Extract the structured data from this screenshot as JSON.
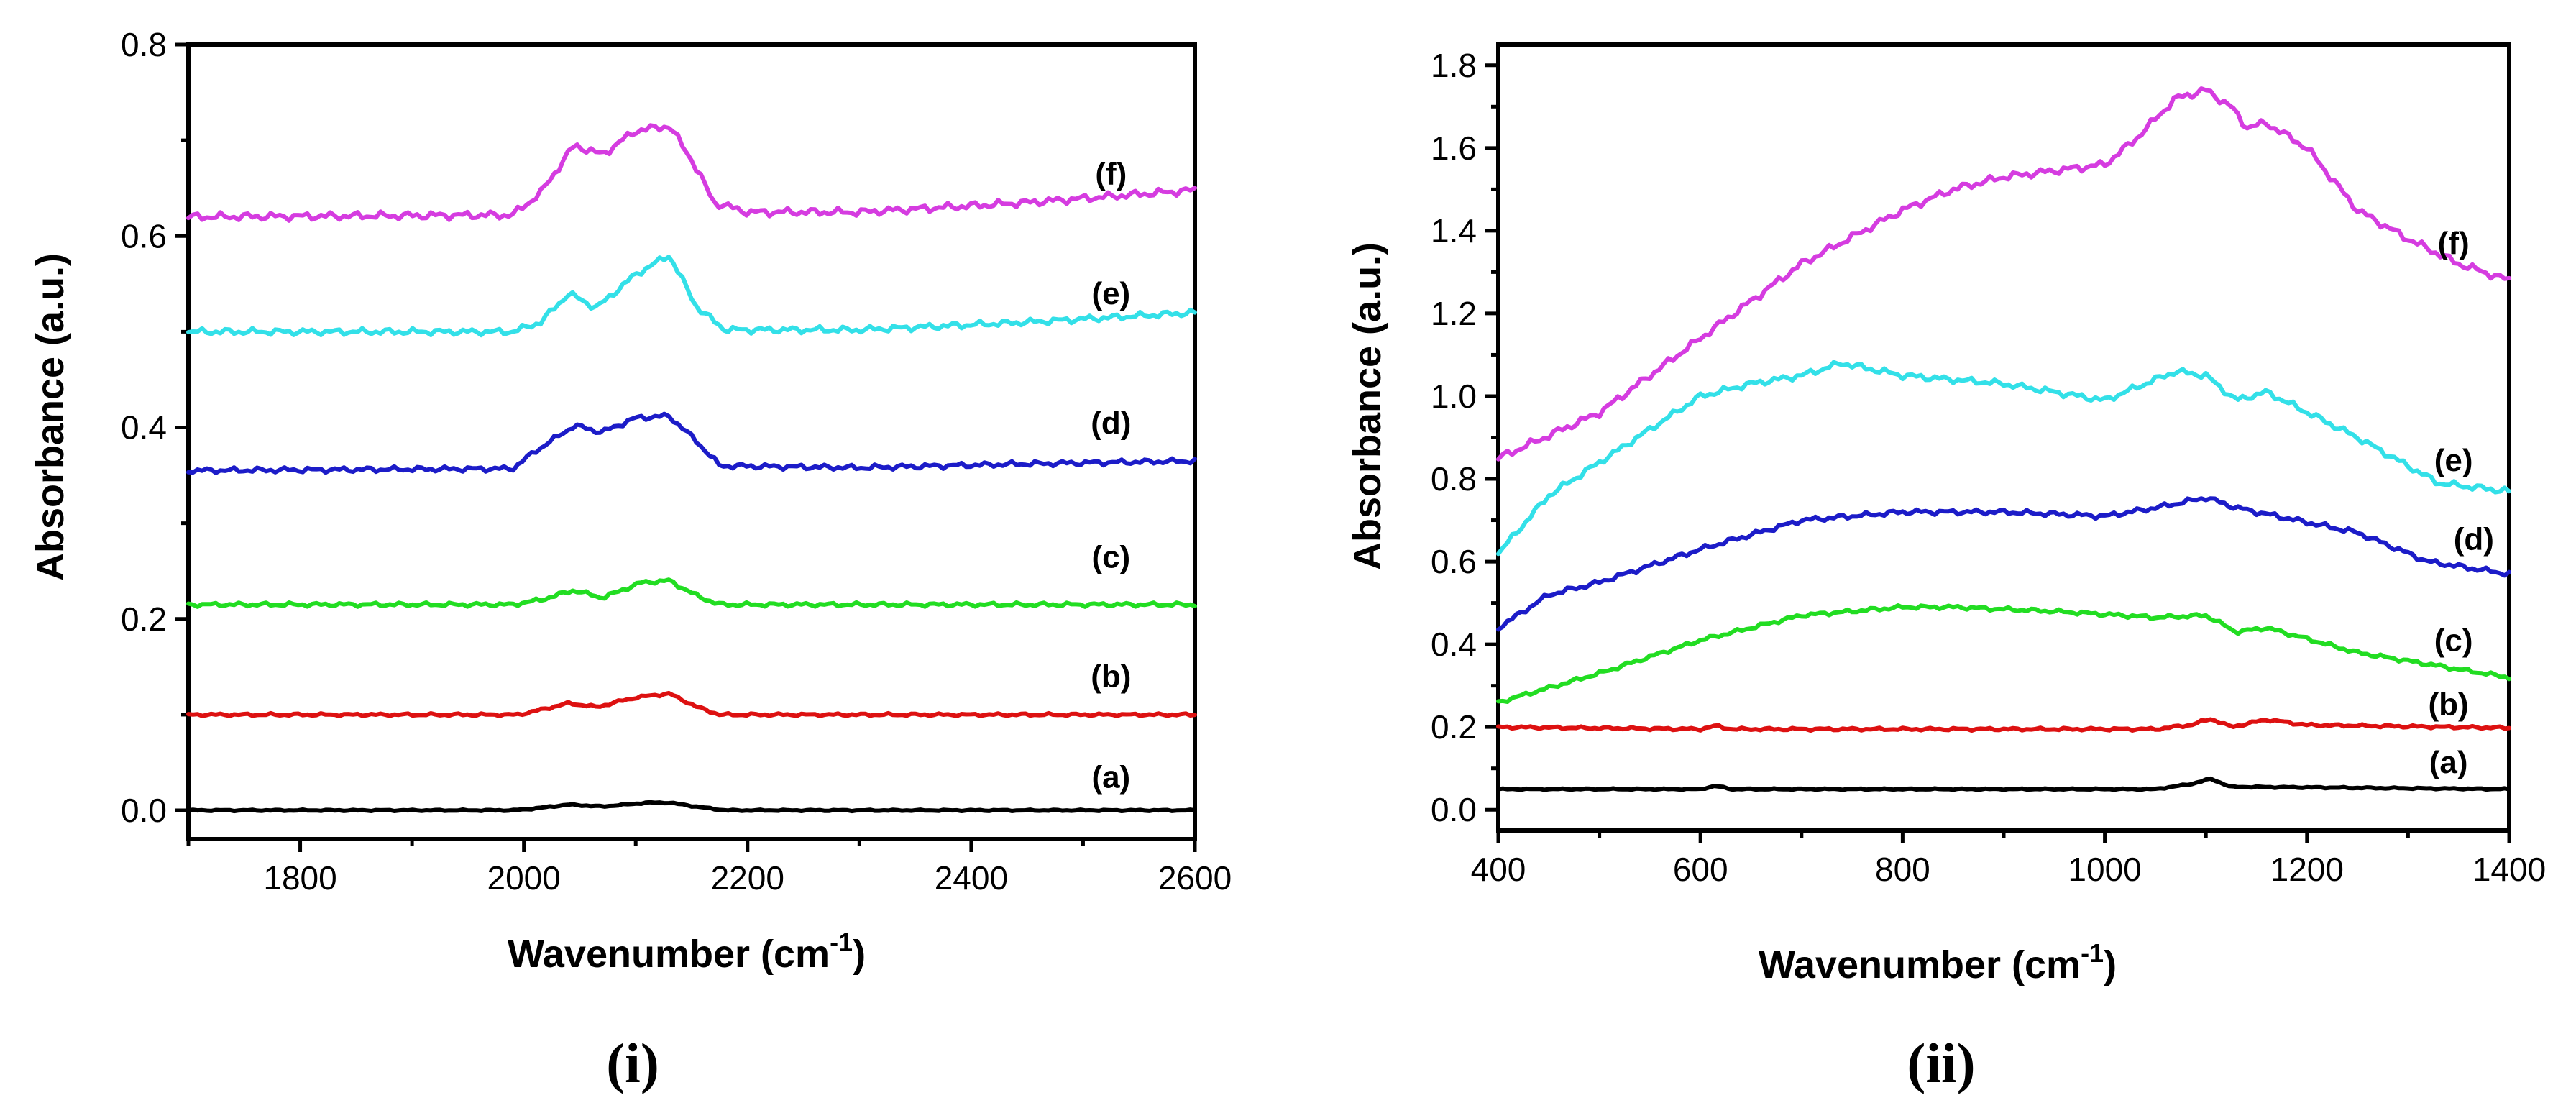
{
  "chart_data": [
    {
      "id": "i",
      "type": "line",
      "caption": "(i)",
      "xlabel": "Wavenumber (cm",
      "xlabel_sup": "-1",
      "xlabel_close": ")",
      "ylabel": "Absorbance (a.u.)",
      "xlim": [
        1700,
        2600
      ],
      "ylim": [
        -0.03,
        0.8
      ],
      "x_ticks": [
        1800,
        2000,
        2200,
        2400,
        2600
      ],
      "x_tick_labels": [
        "1800",
        "2000",
        "2200",
        "2400",
        "2600"
      ],
      "y_ticks": [
        0.0,
        0.2,
        0.4,
        0.6,
        0.8
      ],
      "y_tick_labels": [
        "0.0",
        "0.2",
        "0.4",
        "0.6",
        "0.8"
      ],
      "series": [
        {
          "name": "(a)",
          "color": "#000000",
          "label_x": 2525,
          "label_y": 0.035,
          "x": [
            1700,
            1990,
            2010,
            2040,
            2070,
            2110,
            2130,
            2160,
            2180,
            2600
          ],
          "y": [
            0.0,
            0.0,
            0.002,
            0.006,
            0.004,
            0.008,
            0.008,
            0.003,
            0.0,
            0.0
          ]
        },
        {
          "name": "(b)",
          "color": "#dd1111",
          "label_x": 2525,
          "label_y": 0.14,
          "x": [
            1700,
            1995,
            2015,
            2040,
            2065,
            2100,
            2130,
            2155,
            2175,
            2600
          ],
          "y": [
            0.1,
            0.1,
            0.105,
            0.112,
            0.108,
            0.118,
            0.122,
            0.108,
            0.1,
            0.1
          ]
        },
        {
          "name": "(c)",
          "color": "#22dd22",
          "label_x": 2525,
          "label_y": 0.265,
          "x": [
            1700,
            1990,
            2015,
            2045,
            2070,
            2105,
            2130,
            2155,
            2175,
            2600
          ],
          "y": [
            0.215,
            0.215,
            0.22,
            0.23,
            0.222,
            0.238,
            0.24,
            0.224,
            0.215,
            0.215
          ]
        },
        {
          "name": "(d)",
          "color": "#1c1cc8",
          "label_x": 2525,
          "label_y": 0.405,
          "x": [
            1700,
            1990,
            2010,
            2045,
            2070,
            2100,
            2130,
            2155,
            2175,
            2300,
            2450,
            2600
          ],
          "y": [
            0.355,
            0.357,
            0.375,
            0.402,
            0.395,
            0.41,
            0.412,
            0.385,
            0.36,
            0.358,
            0.362,
            0.365
          ]
        },
        {
          "name": "(e)",
          "color": "#33e0e8",
          "label_x": 2525,
          "label_y": 0.54,
          "x": [
            1700,
            1990,
            2015,
            2040,
            2065,
            2100,
            2130,
            2155,
            2180,
            2300,
            2450,
            2600
          ],
          "y": [
            0.5,
            0.5,
            0.51,
            0.54,
            0.525,
            0.56,
            0.58,
            0.525,
            0.502,
            0.502,
            0.51,
            0.52
          ]
        },
        {
          "name": "(f)",
          "color": "#d53ce0",
          "label_x": 2525,
          "label_y": 0.665,
          "x": [
            1700,
            1990,
            2015,
            2045,
            2070,
            2100,
            2130,
            2150,
            2170,
            2200,
            2300,
            2450,
            2600
          ],
          "y": [
            0.62,
            0.622,
            0.645,
            0.695,
            0.685,
            0.71,
            0.715,
            0.68,
            0.635,
            0.625,
            0.625,
            0.635,
            0.648
          ]
        }
      ]
    },
    {
      "id": "ii",
      "type": "line",
      "caption": "(ii)",
      "xlabel": "Wavenumber (cm",
      "xlabel_sup": "-1",
      "xlabel_close": ")",
      "ylabel": "Absorbance (a.u.)",
      "xlim": [
        400,
        1400
      ],
      "ylim": [
        -0.05,
        1.85
      ],
      "x_ticks": [
        400,
        600,
        800,
        1000,
        1200,
        1400
      ],
      "x_tick_labels": [
        "400",
        "600",
        "800",
        "1000",
        "1200",
        "1400"
      ],
      "y_ticks": [
        0.0,
        0.2,
        0.4,
        0.6,
        0.8,
        1.0,
        1.2,
        1.4,
        1.6,
        1.8
      ],
      "y_tick_labels": [
        "0.0",
        "0.2",
        "0.4",
        "0.6",
        "0.8",
        "1.0",
        "1.2",
        "1.4",
        "1.6",
        "1.8"
      ],
      "series": [
        {
          "name": "(a)",
          "color": "#000000",
          "label_x": 1340,
          "label_y": 0.115,
          "x": [
            400,
            600,
            615,
            630,
            1050,
            1085,
            1105,
            1125,
            1150,
            1400
          ],
          "y": [
            0.05,
            0.05,
            0.058,
            0.05,
            0.05,
            0.062,
            0.075,
            0.055,
            0.055,
            0.05
          ]
        },
        {
          "name": "(b)",
          "color": "#dd1111",
          "label_x": 1340,
          "label_y": 0.255,
          "x": [
            400,
            600,
            615,
            630,
            1050,
            1085,
            1105,
            1125,
            1160,
            1200,
            1400
          ],
          "y": [
            0.2,
            0.195,
            0.203,
            0.195,
            0.195,
            0.205,
            0.22,
            0.2,
            0.218,
            0.205,
            0.198
          ]
        },
        {
          "name": "(c)",
          "color": "#22dd22",
          "label_x": 1345,
          "label_y": 0.41,
          "x": [
            400,
            500,
            600,
            700,
            800,
            850,
            950,
            1050,
            1100,
            1130,
            1160,
            1250,
            1400
          ],
          "y": [
            0.26,
            0.33,
            0.41,
            0.47,
            0.49,
            0.49,
            0.48,
            0.465,
            0.47,
            0.43,
            0.44,
            0.38,
            0.32
          ]
        },
        {
          "name": "(d)",
          "color": "#1c1cc8",
          "label_x": 1365,
          "label_y": 0.655,
          "x": [
            400,
            450,
            500,
            600,
            700,
            800,
            900,
            1000,
            1050,
            1100,
            1130,
            1150,
            1250,
            1320,
            1400
          ],
          "y": [
            0.44,
            0.52,
            0.55,
            0.63,
            0.7,
            0.72,
            0.72,
            0.71,
            0.73,
            0.755,
            0.73,
            0.72,
            0.67,
            0.6,
            0.57
          ]
        },
        {
          "name": "(e)",
          "color": "#33e0e8",
          "label_x": 1345,
          "label_y": 0.845,
          "x": [
            400,
            450,
            500,
            600,
            650,
            700,
            740,
            800,
            900,
            1000,
            1050,
            1070,
            1100,
            1130,
            1160,
            1250,
            1330,
            1400
          ],
          "y": [
            0.62,
            0.76,
            0.84,
            1.0,
            1.03,
            1.05,
            1.08,
            1.05,
            1.03,
            0.99,
            1.04,
            1.06,
            1.05,
            0.99,
            1.01,
            0.9,
            0.79,
            0.77
          ]
        },
        {
          "name": "(f)",
          "color": "#d53ce0",
          "label_x": 1345,
          "label_y": 1.37,
          "x": [
            400,
            500,
            600,
            700,
            800,
            850,
            900,
            1000,
            1030,
            1070,
            1100,
            1125,
            1140,
            1160,
            1200,
            1250,
            1300,
            1350,
            1400
          ],
          "y": [
            0.85,
            0.96,
            1.14,
            1.32,
            1.45,
            1.5,
            1.53,
            1.56,
            1.62,
            1.72,
            1.74,
            1.7,
            1.65,
            1.66,
            1.6,
            1.45,
            1.38,
            1.32,
            1.28
          ]
        }
      ]
    }
  ]
}
